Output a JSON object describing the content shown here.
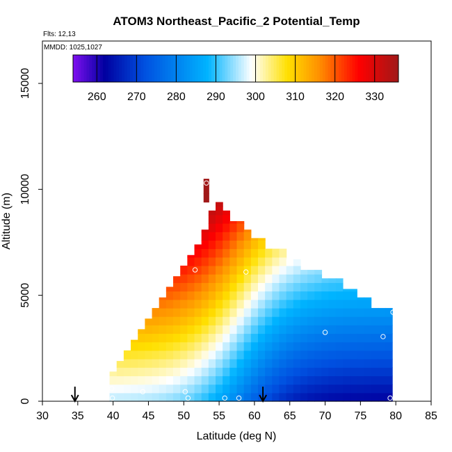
{
  "chart_data": {
    "type": "heatmap",
    "title": "ATOM3 Northeast_Pacific_2 Potential_Temp",
    "flights_label": "Flts: 12,13",
    "dates_label": "MMDD: 1025,1027",
    "xlabel": "Latitude (deg N)",
    "ylabel": "Altitude (m)",
    "xlim": [
      30,
      85
    ],
    "ylim": [
      0,
      17000
    ],
    "x_ticks": [
      30,
      35,
      40,
      45,
      50,
      55,
      60,
      65,
      70,
      75,
      80,
      85
    ],
    "y_ticks": [
      0,
      5000,
      10000,
      15000
    ],
    "colorbar": {
      "range": [
        254,
        336
      ],
      "ticks": [
        260,
        270,
        280,
        290,
        300,
        310,
        320,
        330
      ],
      "placement": "top inside plot"
    },
    "grid": false,
    "colors": {
      "scale": [
        "#7f0ff0",
        "#0000a0",
        "#0050e0",
        "#00b4ff",
        "#ffffff",
        "#ffe000",
        "#ff9000",
        "#ff0000",
        "#a01818"
      ]
    },
    "field_model": {
      "description": "potential temperature rises with altitude; isentropes slope upward toward the north",
      "surface_theta_south": 296,
      "surface_theta_north": 262,
      "gradient_center_lat": 58,
      "gradient_width_deg": 8,
      "lapse_K_per_km": 5.0
    },
    "curtain_top": {
      "lat_edges": [
        39.5,
        40.5,
        41.5,
        42.5,
        43.5,
        44.5,
        45.5,
        46.5,
        47.5,
        48.5,
        49.5,
        50.5,
        51.5,
        52.5,
        53.5,
        54.5,
        55.5,
        56.5,
        57.5,
        58.5,
        59.5,
        60.5,
        61.5,
        62.5,
        63.5,
        64.5,
        65.5,
        66.5,
        67.5,
        68.5,
        69.5,
        70.5,
        71.5,
        72.5,
        73.5,
        74.5,
        75.5,
        76.5,
        77.5,
        78.5,
        79.5
      ],
      "top_alt_m": [
        1400,
        1900,
        2400,
        2900,
        3400,
        3900,
        4400,
        4900,
        5400,
        5900,
        6400,
        6900,
        7400,
        8100,
        9000,
        9400,
        9000,
        8500,
        8500,
        8100,
        7700,
        7700,
        7200,
        7200,
        7200,
        6700,
        6700,
        6200,
        6200,
        6200,
        5800,
        5800,
        5800,
        5300,
        5300,
        4900,
        4900,
        4400,
        4400,
        4400
      ]
    },
    "peak_spike": {
      "lat": [
        52.8,
        53.6
      ],
      "top_alt_m": 10500
    },
    "sample_points": [
      {
        "lat": 39.8,
        "alt": 600
      },
      {
        "lat": 39.9,
        "alt": 150
      },
      {
        "lat": 44.2,
        "alt": 450
      },
      {
        "lat": 50.2,
        "alt": 450
      },
      {
        "lat": 50.6,
        "alt": 150
      },
      {
        "lat": 55.8,
        "alt": 150
      },
      {
        "lat": 57.8,
        "alt": 150
      },
      {
        "lat": 79.2,
        "alt": 150
      },
      {
        "lat": 51.6,
        "alt": 6200
      },
      {
        "lat": 58.8,
        "alt": 6100
      },
      {
        "lat": 53.2,
        "alt": 10300
      },
      {
        "lat": 70.0,
        "alt": 3250
      },
      {
        "lat": 78.2,
        "alt": 3050
      },
      {
        "lat": 79.6,
        "alt": 4200
      }
    ],
    "arrows": [
      {
        "lat": 34.6
      },
      {
        "lat": 61.2
      }
    ]
  }
}
